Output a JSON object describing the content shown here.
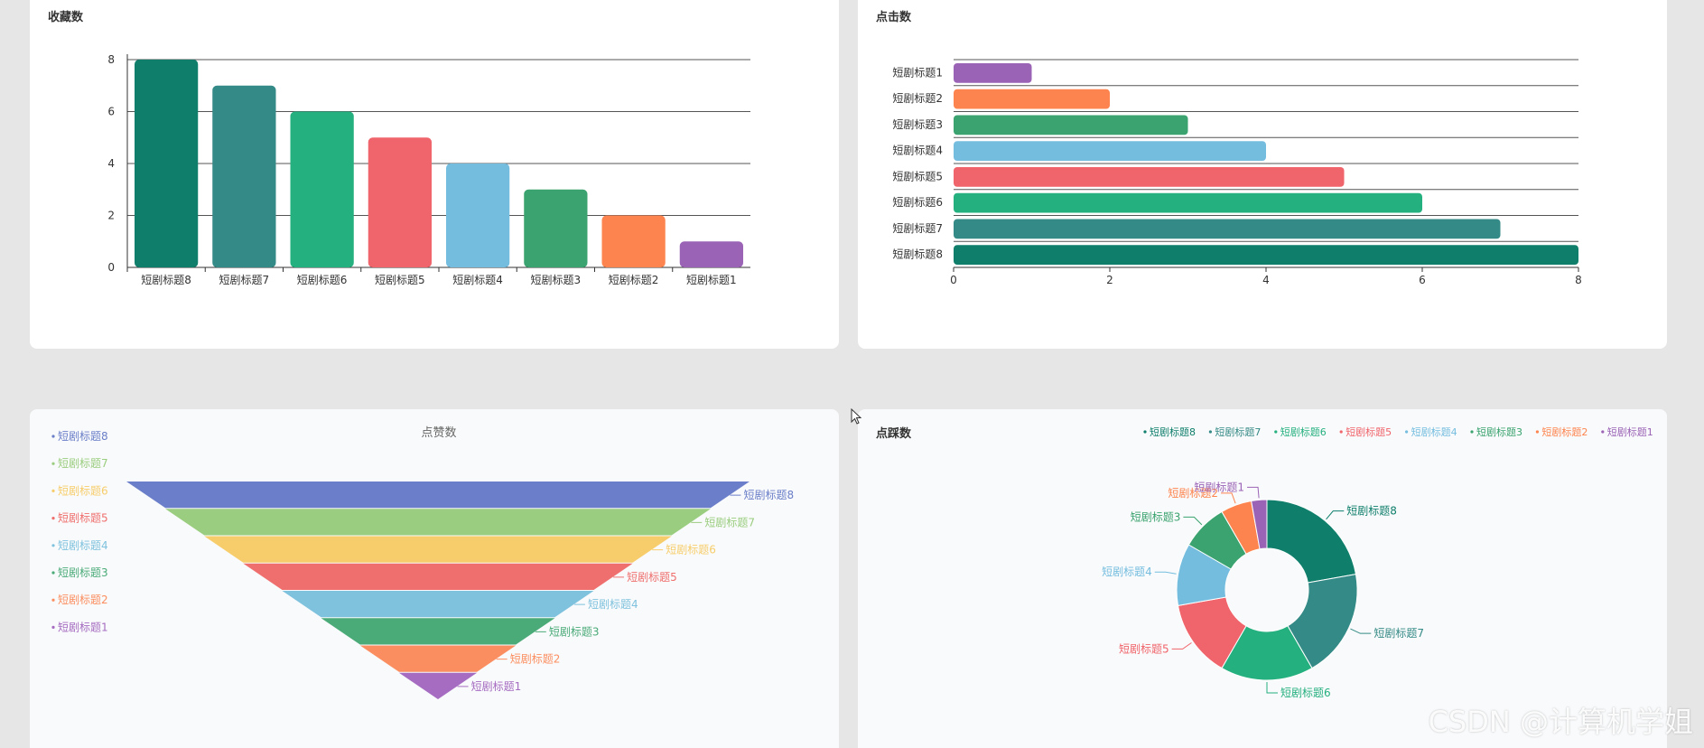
{
  "panels": {
    "bookmarks": {
      "title": "收藏数"
    },
    "clicks": {
      "title": "点击数"
    },
    "likes": {
      "title": "点赞数"
    },
    "dislikes": {
      "title": "点踩数"
    }
  },
  "watermark": "CSDN @计算机学姐",
  "colors": {
    "c8": "#0f7f6c",
    "c7": "#348a86",
    "c6": "#25b07f",
    "c5": "#f0646b",
    "c4": "#74bddf",
    "c3": "#3aa36f",
    "c2": "#fd844e",
    "c1": "#9a63b6",
    "funnel_c8": "#6a7ec9",
    "funnel_c7": "#9acd7f",
    "funnel_c6": "#f7cd6b",
    "funnel_c5": "#ef6f6e",
    "funnel_c4": "#7ec2de",
    "funnel_c3": "#4aab79",
    "funnel_c2": "#fb8e60",
    "funnel_c1": "#a56cc1"
  },
  "chart_data": [
    {
      "id": "bookmarks",
      "type": "bar",
      "title": "收藏数",
      "categories": [
        "短剧标题8",
        "短剧标题7",
        "短剧标题6",
        "短剧标题5",
        "短剧标题4",
        "短剧标题3",
        "短剧标题2",
        "短剧标题1"
      ],
      "values": [
        8,
        7,
        6,
        5,
        4,
        3,
        2,
        1
      ],
      "ylim": [
        0,
        8
      ],
      "yticks": [
        0,
        2,
        4,
        6,
        8
      ],
      "grid": true
    },
    {
      "id": "clicks",
      "type": "bar",
      "orientation": "horizontal",
      "title": "点击数",
      "categories": [
        "短剧标题1",
        "短剧标题2",
        "短剧标题3",
        "短剧标题4",
        "短剧标题5",
        "短剧标题6",
        "短剧标题7",
        "短剧标题8"
      ],
      "values": [
        1,
        2,
        3,
        4,
        5,
        6,
        7,
        8
      ],
      "xlim": [
        0,
        8
      ],
      "xticks": [
        0,
        2,
        4,
        6,
        8
      ],
      "grid": true
    },
    {
      "id": "likes",
      "type": "funnel",
      "title": "点赞数",
      "categories": [
        "短剧标题8",
        "短剧标题7",
        "短剧标题6",
        "短剧标题5",
        "短剧标题4",
        "短剧标题3",
        "短剧标题2",
        "短剧标题1"
      ],
      "values": [
        8,
        7,
        6,
        5,
        4,
        3,
        2,
        1
      ],
      "legend": "left"
    },
    {
      "id": "dislikes",
      "type": "pie",
      "donut": true,
      "title": "点踩数",
      "categories": [
        "短剧标题8",
        "短剧标题7",
        "短剧标题6",
        "短剧标题5",
        "短剧标题4",
        "短剧标题3",
        "短剧标题2",
        "短剧标题1"
      ],
      "values": [
        8,
        7,
        6,
        5,
        4,
        3,
        2,
        1
      ],
      "legend": "top-right"
    }
  ]
}
